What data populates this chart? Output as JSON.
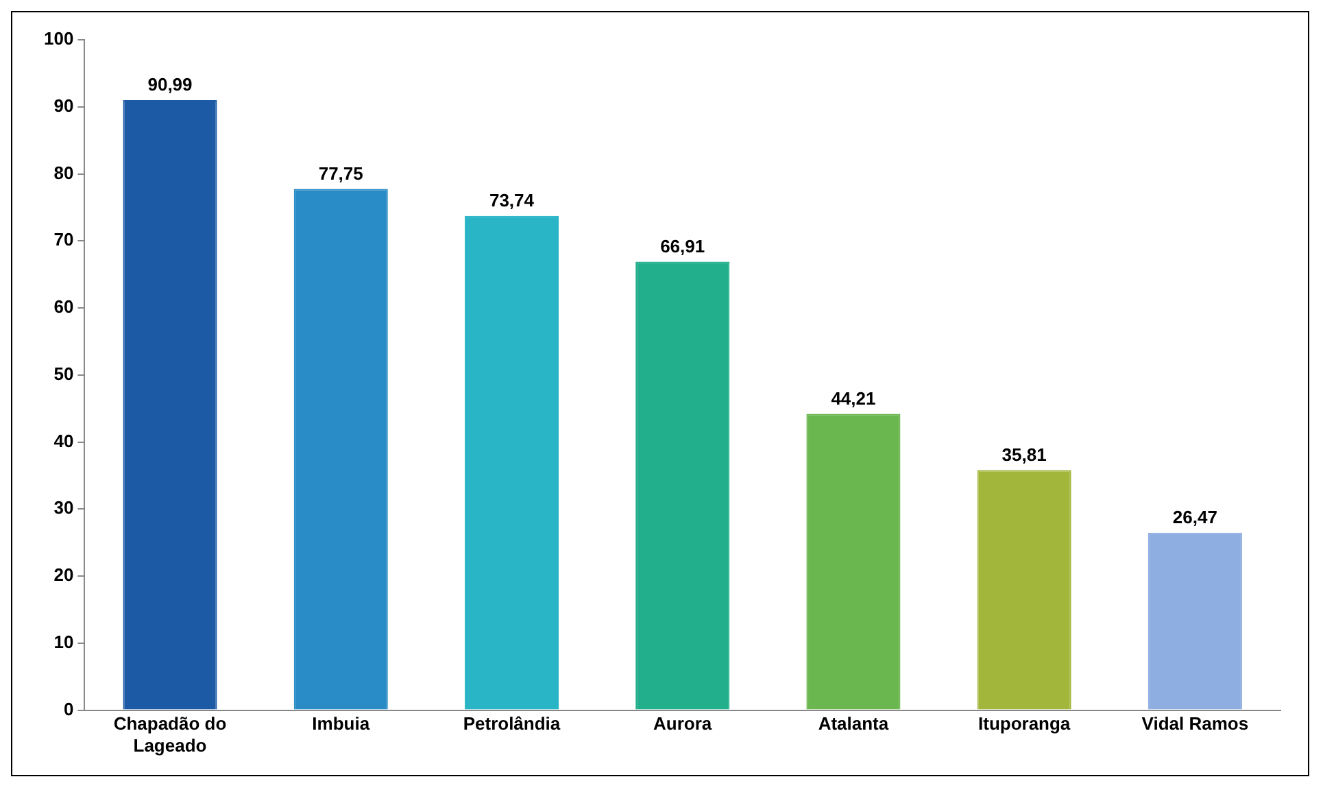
{
  "chart_data": {
    "type": "bar",
    "categories": [
      "Chapadão do Lageado",
      "Imbuia",
      "Petrolândia",
      "Aurora",
      "Atalanta",
      "Ituporanga",
      "Vidal Ramos"
    ],
    "values": [
      90.99,
      77.75,
      73.74,
      66.91,
      44.21,
      35.81,
      26.47
    ],
    "colors": [
      "#1c5aa6",
      "#2a8cc6",
      "#2ab5c6",
      "#22b08c",
      "#6bb74f",
      "#a2b63c",
      "#8eaee2"
    ],
    "value_labels": [
      "90,99",
      "77,75",
      "73,74",
      "66,91",
      "44,21",
      "35,81",
      "26,47"
    ],
    "ylim": [
      0,
      100
    ],
    "yticks": [
      0,
      10,
      20,
      30,
      40,
      50,
      60,
      70,
      80,
      90,
      100
    ],
    "grid": false,
    "legend": false
  }
}
